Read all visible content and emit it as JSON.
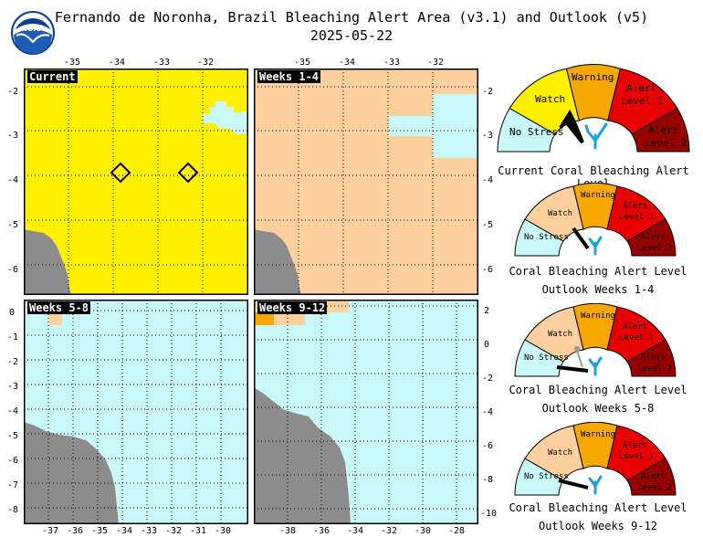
{
  "header": {
    "title": "Fernando de Noronha, Brazil Bleaching Alert Area (v3.1) and Outlook (v5)",
    "date": "2025-05-22",
    "logo_text": "NOAA"
  },
  "maps": [
    {
      "label": "Current"
    },
    {
      "label": "Weeks 1-4"
    },
    {
      "label": "Weeks 5-8"
    },
    {
      "label": "Weeks 9-12"
    }
  ],
  "axes": {
    "top_lon": [
      "-35",
      "-34",
      "-33",
      "-32"
    ],
    "top_lon2": [
      "-35",
      "-34",
      "-33",
      "-32"
    ],
    "left_lat": [
      "-2",
      "-3",
      "-4",
      "-5",
      "-6"
    ],
    "right_lat": [
      "-2",
      "-3",
      "-4",
      "-5",
      "-6"
    ],
    "left_lat_bottom": [
      "0",
      "-1",
      "-2",
      "-3",
      "-4",
      "-5",
      "-6",
      "-7",
      "-8"
    ],
    "right_lat_bottom": [
      "2",
      "0",
      "-2",
      "-4",
      "-6",
      "-8",
      "-10"
    ],
    "bottom_lon_left": [
      "-37",
      "-36",
      "-35",
      "-34",
      "-33",
      "-32",
      "-31",
      "-30"
    ],
    "bottom_lon_right": [
      "-38",
      "-36",
      "-34",
      "-32",
      "-30",
      "-28"
    ]
  },
  "gauge_levels": {
    "no_stress": "No Stress",
    "watch": "Watch",
    "warning": "Warning",
    "alert1_a": "Alert",
    "alert1_b": "Level 1",
    "alert2_a": "Alert",
    "alert2_b": "Level 2"
  },
  "gauges": [
    {
      "caption1": "Current Coral Bleaching Alert Level",
      "caption2": "",
      "level": "Watch"
    },
    {
      "caption1": "Coral Bleaching Alert Level",
      "caption2": "Outlook Weeks 1-4",
      "level": "Watch"
    },
    {
      "caption1": "Coral Bleaching Alert Level",
      "caption2": "Outlook Weeks 5-8",
      "level": "No Stress"
    },
    {
      "caption1": "Coral Bleaching Alert Level",
      "caption2": "Outlook Weeks 9-12",
      "level": "No Stress"
    }
  ],
  "colors": {
    "no_stress": "#c8f8f8",
    "watch": "#fff000",
    "warning": "#f6a800",
    "alert1": "#e80000",
    "alert2": "#960000",
    "outlook_watch": "#ffd09e",
    "land": "#8c8c8c"
  }
}
